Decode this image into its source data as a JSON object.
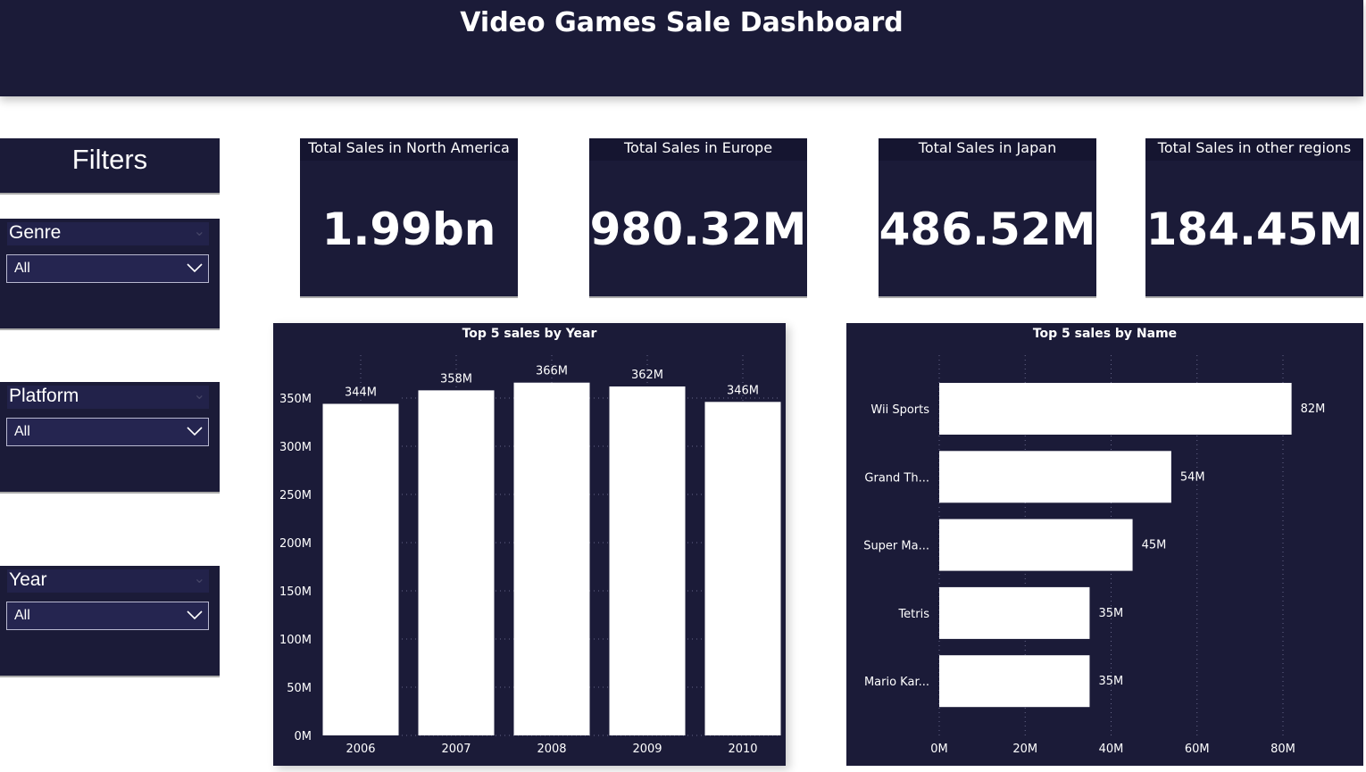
{
  "header": {
    "title": "Video Games Sale Dashboard"
  },
  "filters": {
    "title": "Filters",
    "slicers": [
      {
        "label": "Genre",
        "value": "All"
      },
      {
        "label": "Platform",
        "value": "All"
      },
      {
        "label": "Year",
        "value": "All"
      }
    ]
  },
  "kpis": [
    {
      "title": "Total Sales in North America",
      "value": "1.99bn"
    },
    {
      "title": "Total Sales in Europe",
      "value": "980.32M"
    },
    {
      "title": "Total Sales in Japan",
      "value": "486.52M"
    },
    {
      "title": "Total Sales in other regions",
      "value": "184.45M"
    }
  ],
  "colors": {
    "background": "#1b1b38",
    "bar": "#ffffff",
    "text": "#ffffff"
  },
  "chart_data": [
    {
      "type": "bar",
      "title": "Top 5 sales by Year",
      "categories": [
        "2006",
        "2007",
        "2008",
        "2009",
        "2010"
      ],
      "values": [
        344,
        358,
        366,
        362,
        346
      ],
      "data_labels": [
        "344M",
        "358M",
        "366M",
        "362M",
        "346M"
      ],
      "unit": "M",
      "ylim": [
        0,
        350
      ],
      "yticks": [
        "0M",
        "50M",
        "100M",
        "150M",
        "200M",
        "250M",
        "300M",
        "350M"
      ],
      "grid": true
    },
    {
      "type": "bar",
      "orientation": "horizontal",
      "title": "Top 5 sales by Name",
      "categories": [
        "Wii Sports",
        "Grand Th...",
        "Super Ma...",
        "Tetris",
        "Mario Kar..."
      ],
      "values": [
        82,
        54,
        45,
        35,
        35
      ],
      "data_labels": [
        "82M",
        "54M",
        "45M",
        "35M",
        "35M"
      ],
      "unit": "M",
      "xlim": [
        0,
        80
      ],
      "xticks": [
        "0M",
        "20M",
        "40M",
        "60M",
        "80M"
      ],
      "grid": true
    }
  ]
}
